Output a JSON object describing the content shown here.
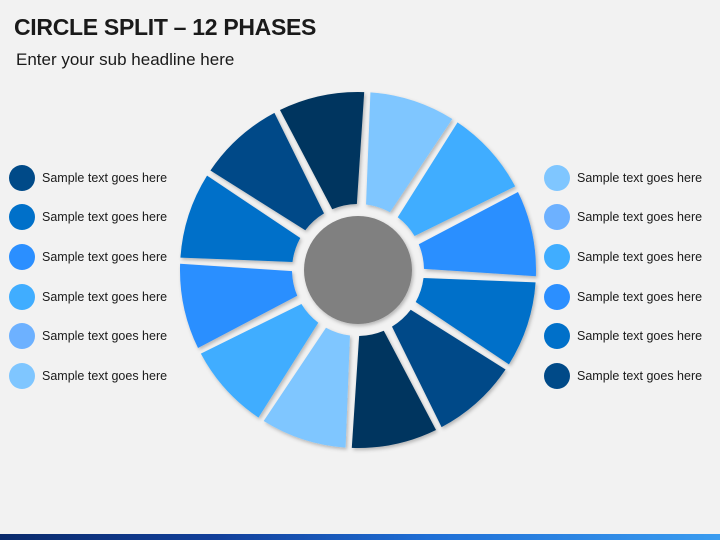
{
  "header": {
    "title": "CIRCLE SPLIT – 12 PHASES",
    "subtitle": "Enter your sub headline here"
  },
  "legend_left": [
    {
      "label": "Sample text goes here",
      "color": "#004a88"
    },
    {
      "label": "Sample text goes here",
      "color": "#0070c9"
    },
    {
      "label": "Sample text goes here",
      "color": "#2b8fff"
    },
    {
      "label": "Sample text goes here",
      "color": "#40adff"
    },
    {
      "label": "Sample text goes here",
      "color": "#6db1ff"
    },
    {
      "label": "Sample text goes here",
      "color": "#7fc6ff"
    }
  ],
  "legend_right": [
    {
      "label": "Sample text goes here",
      "color": "#7fc6ff"
    },
    {
      "label": "Sample text goes here",
      "color": "#6db1ff"
    },
    {
      "label": "Sample text goes here",
      "color": "#40adff"
    },
    {
      "label": "Sample text goes here",
      "color": "#2b8fff"
    },
    {
      "label": "Sample text goes here",
      "color": "#0070c9"
    },
    {
      "label": "Sample text goes here",
      "color": "#004a88"
    }
  ],
  "diagram": {
    "center_color": "#808080",
    "segments": [
      {
        "color": "#00355f"
      },
      {
        "color": "#7fc6ff"
      },
      {
        "color": "#40adff"
      },
      {
        "color": "#2b8fff"
      },
      {
        "color": "#0070c9"
      },
      {
        "color": "#004a88"
      },
      {
        "color": "#00355f"
      },
      {
        "color": "#7fc6ff"
      },
      {
        "color": "#40adff"
      },
      {
        "color": "#2b8fff"
      },
      {
        "color": "#0070c9"
      },
      {
        "color": "#004a88"
      }
    ]
  }
}
